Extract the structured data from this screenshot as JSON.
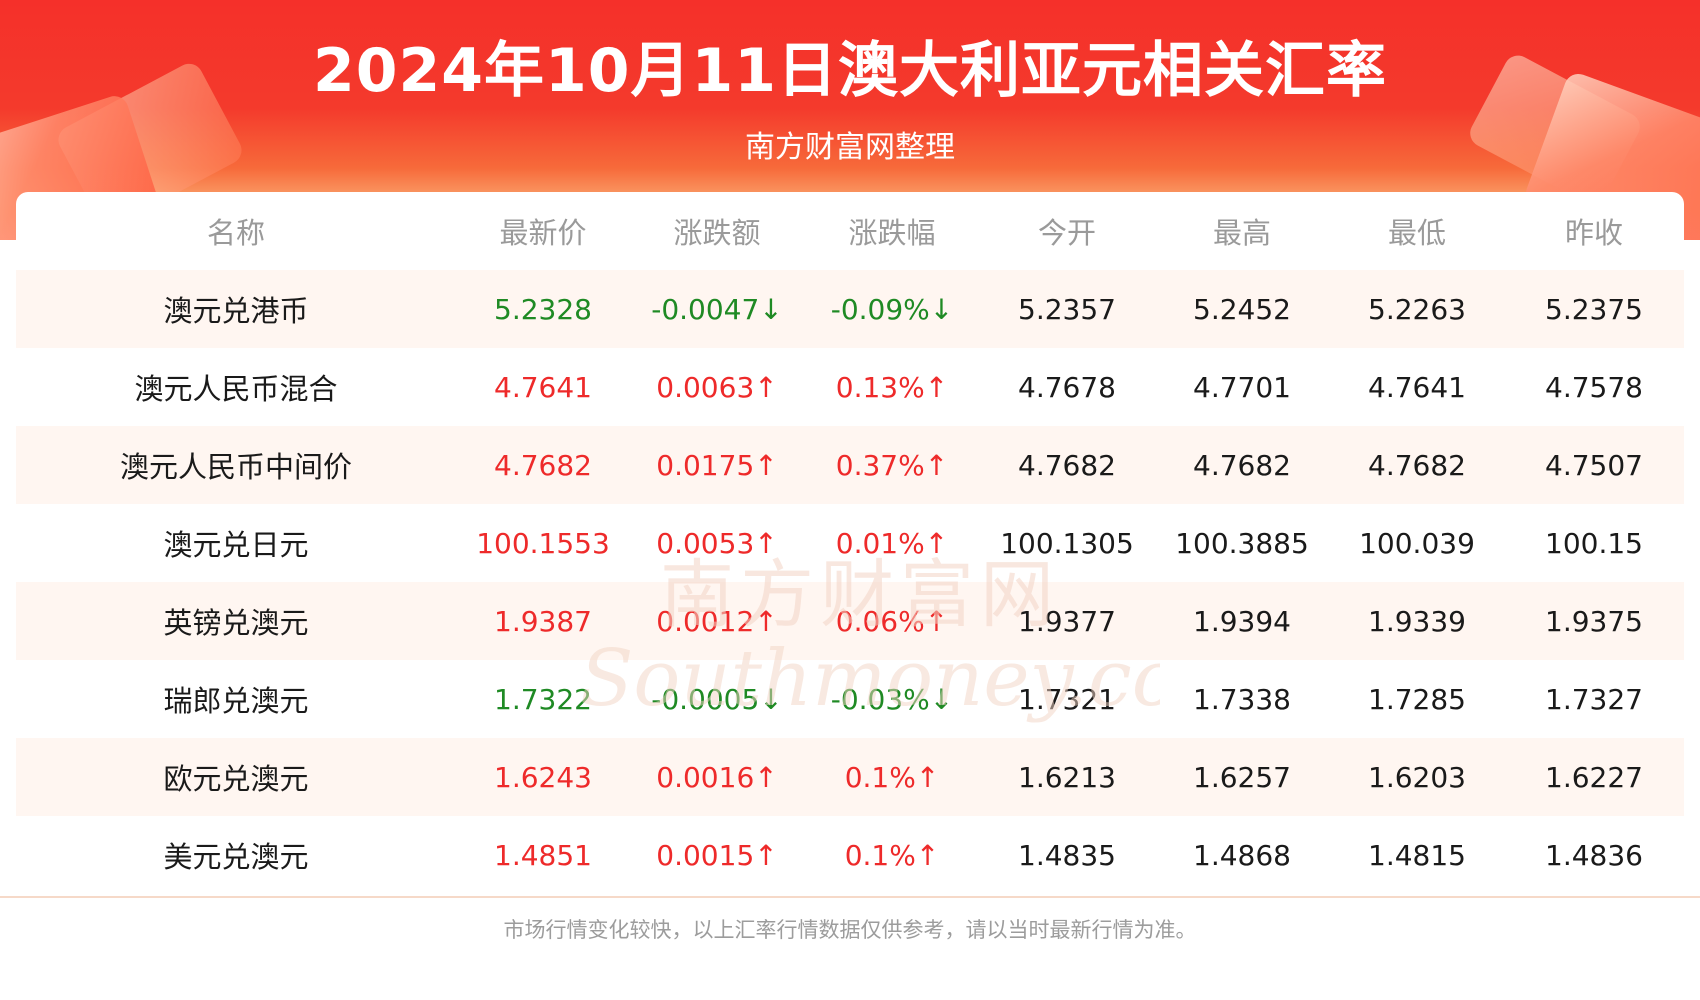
{
  "header": {
    "title": "2024年10月11日澳大利亚元相关汇率",
    "subtitle": "南方财富网整理"
  },
  "table": {
    "columns": [
      "名称",
      "最新价",
      "涨跌额",
      "涨跌幅",
      "今开",
      "最高",
      "最低",
      "昨收"
    ],
    "rows": [
      {
        "name": "澳元兑港币",
        "latest": "5.2328",
        "change": "-0.0047↓",
        "pct": "-0.09%↓",
        "open": "5.2357",
        "high": "5.2452",
        "low": "5.2263",
        "prev": "5.2375",
        "trend": "down"
      },
      {
        "name": "澳元人民币混合",
        "latest": "4.7641",
        "change": "0.0063↑",
        "pct": "0.13%↑",
        "open": "4.7678",
        "high": "4.7701",
        "low": "4.7641",
        "prev": "4.7578",
        "trend": "up"
      },
      {
        "name": "澳元人民币中间价",
        "latest": "4.7682",
        "change": "0.0175↑",
        "pct": "0.37%↑",
        "open": "4.7682",
        "high": "4.7682",
        "low": "4.7682",
        "prev": "4.7507",
        "trend": "up"
      },
      {
        "name": "澳元兑日元",
        "latest": "100.1553",
        "change": "0.0053↑",
        "pct": "0.01%↑",
        "open": "100.1305",
        "high": "100.3885",
        "low": "100.039",
        "prev": "100.15",
        "trend": "up"
      },
      {
        "name": "英镑兑澳元",
        "latest": "1.9387",
        "change": "0.0012↑",
        "pct": "0.06%↑",
        "open": "1.9377",
        "high": "1.9394",
        "low": "1.9339",
        "prev": "1.9375",
        "trend": "up"
      },
      {
        "name": "瑞郎兑澳元",
        "latest": "1.7322",
        "change": "-0.0005↓",
        "pct": "-0.03%↓",
        "open": "1.7321",
        "high": "1.7338",
        "low": "1.7285",
        "prev": "1.7327",
        "trend": "down"
      },
      {
        "name": "欧元兑澳元",
        "latest": "1.6243",
        "change": "0.0016↑",
        "pct": "0.1%↑",
        "open": "1.6213",
        "high": "1.6257",
        "low": "1.6203",
        "prev": "1.6227",
        "trend": "up"
      },
      {
        "name": "美元兑澳元",
        "latest": "1.4851",
        "change": "0.0015↑",
        "pct": "0.1%↑",
        "open": "1.4835",
        "high": "1.4868",
        "low": "1.4815",
        "prev": "1.4836",
        "trend": "up"
      }
    ]
  },
  "watermark": {
    "cn": "南方财富网",
    "en": "Southmoney.com"
  },
  "footer": {
    "note": "市场行情变化较快，以上汇率行情数据仅供参考，请以当时最新行情为准。"
  },
  "colors": {
    "up": "#ee2a2a",
    "down": "#1f8a24",
    "header": "#f5302a"
  }
}
